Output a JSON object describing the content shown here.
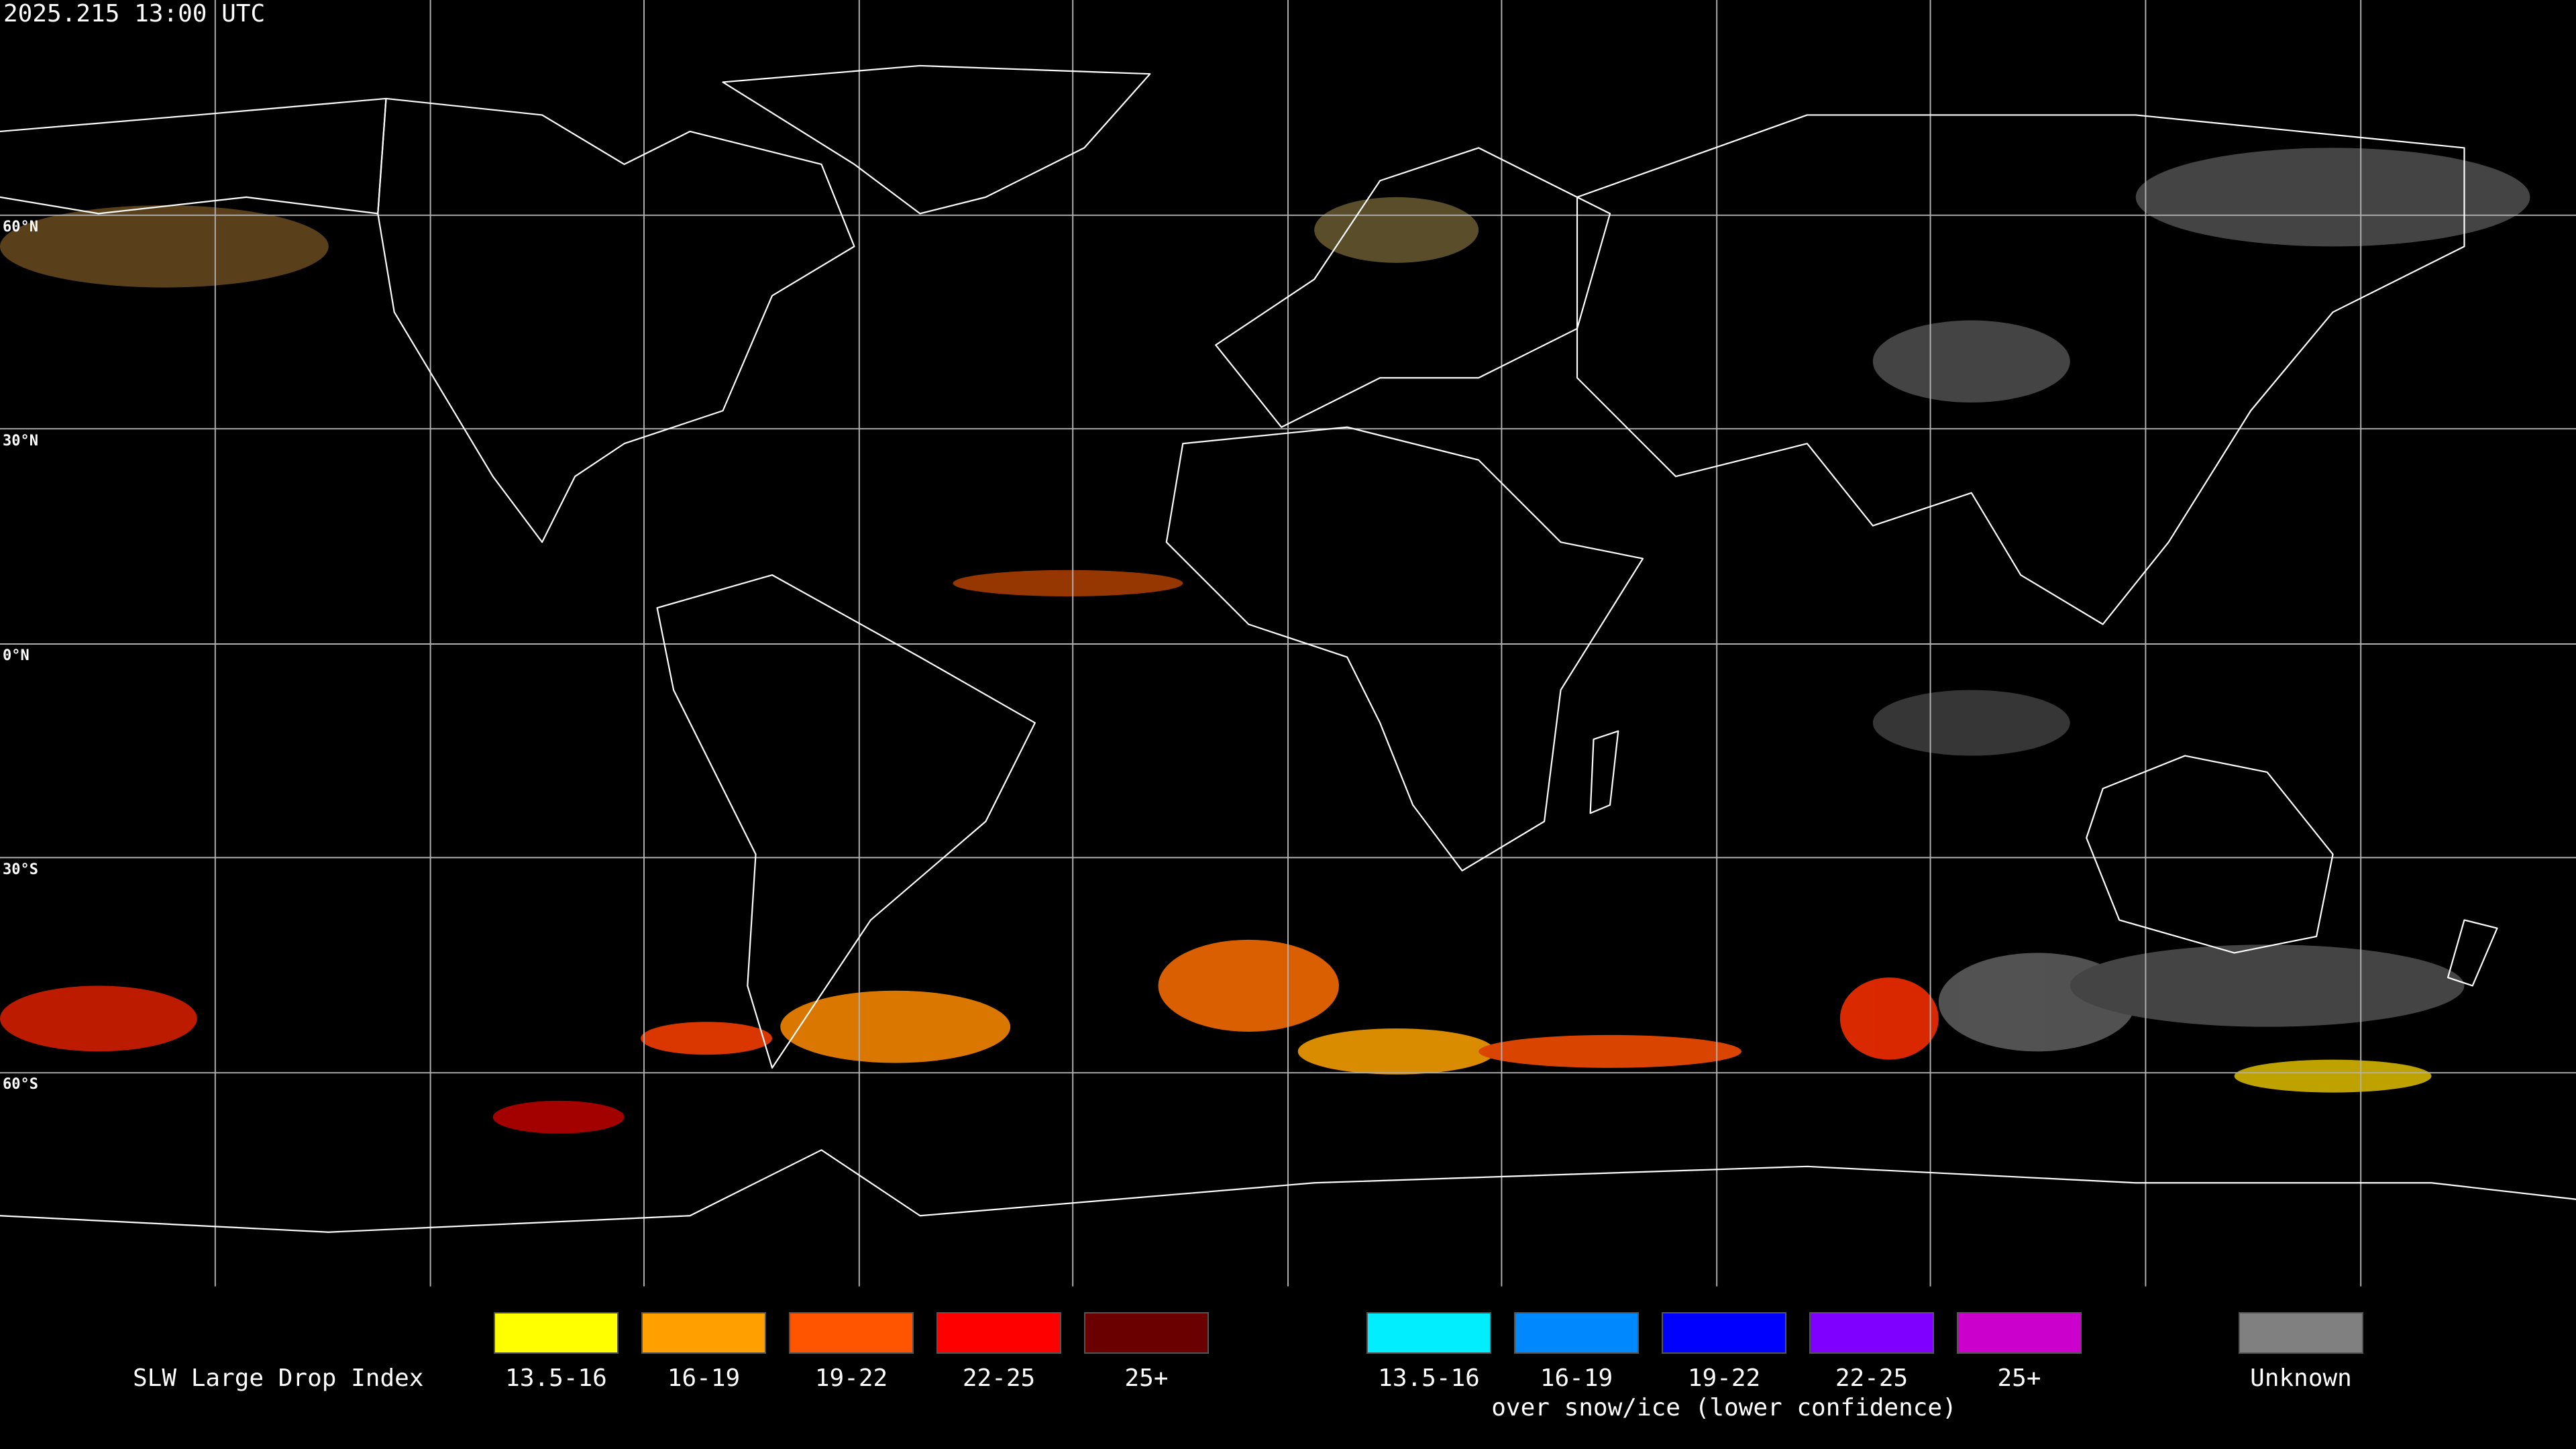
{
  "header": {
    "timestamp": "2025.215 13:00 UTC"
  },
  "map": {
    "latitude_labels": [
      "60°N",
      "30°N",
      "0°N",
      "30°S",
      "60°S"
    ]
  },
  "legend": {
    "title": "SLW Large Drop Index",
    "groups": [
      {
        "entries": [
          {
            "label": "13.5-16",
            "color": "#ffff00"
          },
          {
            "label": "16-19",
            "color": "#ffa000"
          },
          {
            "label": "19-22",
            "color": "#ff5500"
          },
          {
            "label": "22-25",
            "color": "#ff0000"
          },
          {
            "label": "25+",
            "color": "#6b0000"
          }
        ]
      },
      {
        "entries": [
          {
            "label": "13.5-16",
            "color": "#00eeff"
          },
          {
            "label": "16-19",
            "color": "#0088ff"
          },
          {
            "label": "19-22",
            "color": "#0000ff"
          },
          {
            "label": "22-25",
            "color": "#7f00ff"
          },
          {
            "label": "25+",
            "color": "#cc00cc"
          }
        ],
        "subtitle": "over snow/ice (lower confidence)"
      }
    ],
    "unknown": {
      "label": "Unknown",
      "color": "#808080"
    }
  }
}
